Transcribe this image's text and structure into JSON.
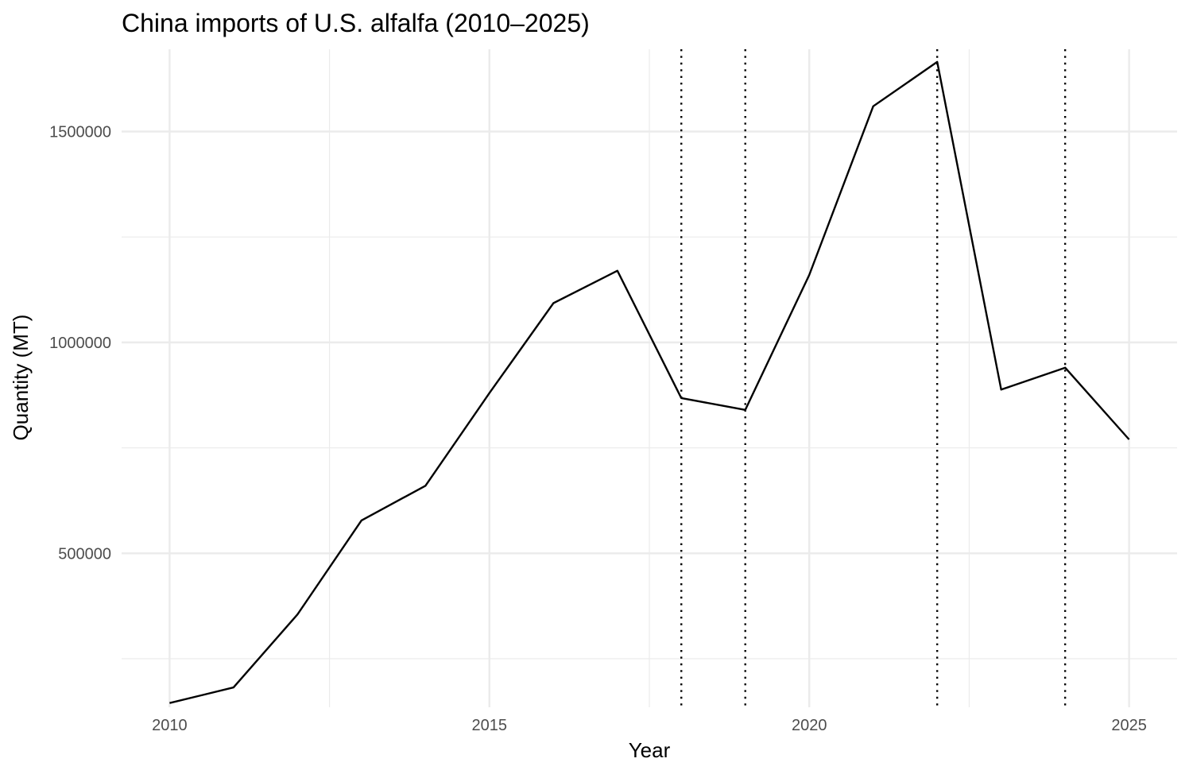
{
  "chart_data": {
    "type": "line",
    "title": "China imports of U.S. alfalfa (2010–2025)",
    "xlabel": "Year",
    "ylabel": "Quantity (MT)",
    "x": [
      2010,
      2011,
      2012,
      2013,
      2014,
      2015,
      2016,
      2017,
      2018,
      2019,
      2020,
      2021,
      2022,
      2023,
      2024,
      2025
    ],
    "series": [
      {
        "values": [
          145000,
          182000,
          355000,
          578000,
          660000,
          880000,
          1093000,
          1170000,
          868000,
          840000,
          1160000,
          1560000,
          1665000,
          888000,
          940000,
          770000
        ]
      }
    ],
    "xlim": [
      2009.25,
      2025.75
    ],
    "ylim": [
      135000,
      1695000
    ],
    "x_ticks": [
      2010,
      2015,
      2020,
      2025
    ],
    "x_tick_labels": [
      "2010",
      "2015",
      "2020",
      "2025"
    ],
    "x_minor_ticks": [
      2012.5,
      2017.5,
      2022.5
    ],
    "y_ticks": [
      500000,
      1000000,
      1500000
    ],
    "y_tick_labels": [
      "500000",
      "1000000",
      "1500000"
    ],
    "y_minor_ticks": [
      250000,
      750000,
      1250000
    ],
    "reference_lines_x": [
      2018,
      2019,
      2022,
      2024
    ],
    "reference_line_style": "dotted",
    "grid": true,
    "legend": "none",
    "colors": {
      "line": "#000000",
      "grid": "#ebebeb",
      "reference_line": "#000000",
      "tick_label": "#4d4d4d"
    }
  }
}
